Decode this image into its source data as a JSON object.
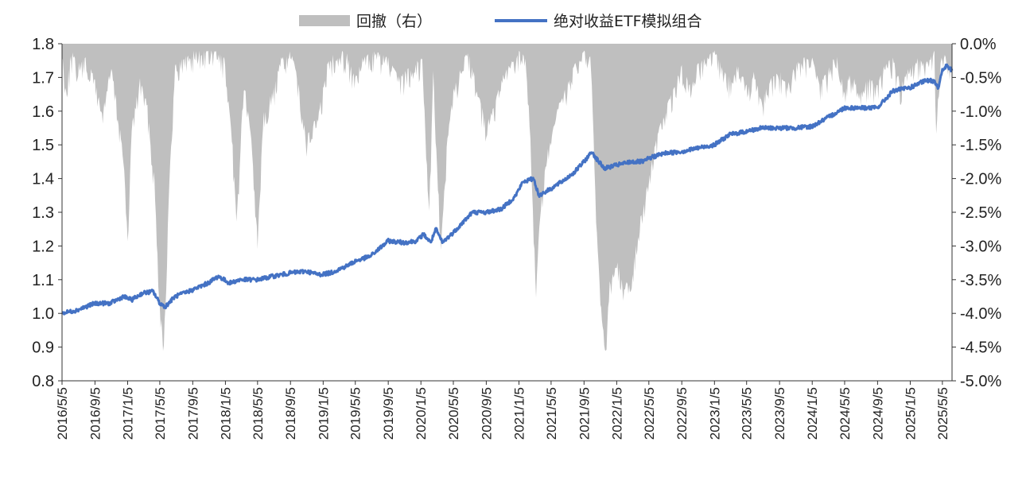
{
  "chart_data": {
    "type": "line",
    "title": "",
    "xlabel": "",
    "ylabel": "",
    "legend": {
      "placement": "top-center",
      "entries": [
        {
          "label": "回撤（右）",
          "kind": "area",
          "color": "#bfbfbf"
        },
        {
          "label": "绝对收益ETF模拟组合",
          "kind": "line",
          "color": "#4472c4"
        }
      ]
    },
    "x_range": [
      "2016-05-05",
      "2025-06-10"
    ],
    "x_ticks": [
      "2016/5/5",
      "2016/9/5",
      "2017/1/5",
      "2017/5/5",
      "2017/9/5",
      "2018/1/5",
      "2018/5/5",
      "2018/9/5",
      "2019/1/5",
      "2019/5/5",
      "2019/9/5",
      "2020/1/5",
      "2020/5/5",
      "2020/9/5",
      "2021/1/5",
      "2021/5/5",
      "2021/9/5",
      "2022/1/5",
      "2022/5/5",
      "2022/9/5",
      "2023/1/5",
      "2023/5/5",
      "2023/9/5",
      "2024/1/5",
      "2024/5/5",
      "2024/9/5",
      "2025/1/5",
      "2025/5/5"
    ],
    "y_left": {
      "min": 0.8,
      "max": 1.8,
      "ticks": [
        "0.8",
        "0.9",
        "1.0",
        "1.1",
        "1.2",
        "1.3",
        "1.4",
        "1.5",
        "1.6",
        "1.7",
        "1.8"
      ]
    },
    "y_right": {
      "min": -5.0,
      "max": 0.0,
      "ticks": [
        "0.0%",
        "-0.5%",
        "-1.0%",
        "-1.5%",
        "-2.0%",
        "-2.5%",
        "-3.0%",
        "-3.5%",
        "-4.0%",
        "-4.5%",
        "-5.0%"
      ]
    },
    "grid": false,
    "series": [
      {
        "name": "绝对收益ETF模拟组合",
        "axis": "left",
        "color": "#4472c4",
        "points": [
          [
            "2016-05-05",
            1.0
          ],
          [
            "2016-07-01",
            1.01
          ],
          [
            "2016-09-05",
            1.03
          ],
          [
            "2016-11-01",
            1.03
          ],
          [
            "2016-12-20",
            1.05
          ],
          [
            "2017-01-20",
            1.04
          ],
          [
            "2017-03-01",
            1.06
          ],
          [
            "2017-04-10",
            1.065
          ],
          [
            "2017-05-05",
            1.03
          ],
          [
            "2017-05-25",
            1.02
          ],
          [
            "2017-07-01",
            1.05
          ],
          [
            "2017-09-05",
            1.07
          ],
          [
            "2017-11-01",
            1.09
          ],
          [
            "2017-12-10",
            1.11
          ],
          [
            "2018-01-20",
            1.09
          ],
          [
            "2018-03-01",
            1.1
          ],
          [
            "2018-05-05",
            1.1
          ],
          [
            "2018-07-01",
            1.11
          ],
          [
            "2018-09-05",
            1.12
          ],
          [
            "2018-11-01",
            1.125
          ],
          [
            "2018-12-20",
            1.115
          ],
          [
            "2019-02-01",
            1.12
          ],
          [
            "2019-04-01",
            1.14
          ],
          [
            "2019-05-05",
            1.155
          ],
          [
            "2019-07-01",
            1.17
          ],
          [
            "2019-09-05",
            1.215
          ],
          [
            "2019-11-01",
            1.21
          ],
          [
            "2019-12-20",
            1.215
          ],
          [
            "2020-01-15",
            1.235
          ],
          [
            "2020-02-10",
            1.21
          ],
          [
            "2020-03-01",
            1.25
          ],
          [
            "2020-03-25",
            1.21
          ],
          [
            "2020-05-05",
            1.24
          ],
          [
            "2020-07-15",
            1.3
          ],
          [
            "2020-09-05",
            1.3
          ],
          [
            "2020-11-01",
            1.31
          ],
          [
            "2020-12-20",
            1.345
          ],
          [
            "2021-01-20",
            1.39
          ],
          [
            "2021-03-01",
            1.4
          ],
          [
            "2021-03-20",
            1.35
          ],
          [
            "2021-05-05",
            1.37
          ],
          [
            "2021-07-01",
            1.4
          ],
          [
            "2021-08-01",
            1.42
          ],
          [
            "2021-09-05",
            1.45
          ],
          [
            "2021-10-05",
            1.48
          ],
          [
            "2021-10-20",
            1.46
          ],
          [
            "2021-11-20",
            1.43
          ],
          [
            "2022-01-05",
            1.44
          ],
          [
            "2022-03-01",
            1.45
          ],
          [
            "2022-04-15",
            1.45
          ],
          [
            "2022-05-05",
            1.46
          ],
          [
            "2022-07-01",
            1.475
          ],
          [
            "2022-09-05",
            1.48
          ],
          [
            "2022-11-01",
            1.49
          ],
          [
            "2023-01-05",
            1.5
          ],
          [
            "2023-03-01",
            1.53
          ],
          [
            "2023-05-05",
            1.54
          ],
          [
            "2023-07-01",
            1.55
          ],
          [
            "2023-09-05",
            1.55
          ],
          [
            "2023-11-01",
            1.55
          ],
          [
            "2024-01-05",
            1.555
          ],
          [
            "2024-03-01",
            1.58
          ],
          [
            "2024-05-05",
            1.61
          ],
          [
            "2024-07-01",
            1.61
          ],
          [
            "2024-09-05",
            1.61
          ],
          [
            "2024-11-01",
            1.66
          ],
          [
            "2025-01-05",
            1.67
          ],
          [
            "2025-03-01",
            1.69
          ],
          [
            "2025-04-05",
            1.69
          ],
          [
            "2025-04-20",
            1.67
          ],
          [
            "2025-05-05",
            1.72
          ],
          [
            "2025-05-20",
            1.735
          ],
          [
            "2025-06-10",
            1.72
          ]
        ]
      },
      {
        "name": "回撤（右）",
        "axis": "right",
        "kind": "area",
        "color": "#bfbfbf",
        "points": [
          [
            "2016-05-05",
            -0.1
          ],
          [
            "2016-05-20",
            -0.6
          ],
          [
            "2016-06-10",
            -0.1
          ],
          [
            "2016-07-01",
            -0.3
          ],
          [
            "2016-08-01",
            -0.2
          ],
          [
            "2016-09-05",
            -0.5
          ],
          [
            "2016-10-01",
            -1.0
          ],
          [
            "2016-11-05",
            -0.3
          ],
          [
            "2016-12-20",
            -1.6
          ],
          [
            "2017-01-05",
            -2.9
          ],
          [
            "2017-01-20",
            -1.2
          ],
          [
            "2017-02-20",
            -0.5
          ],
          [
            "2017-03-20",
            -0.9
          ],
          [
            "2017-04-15",
            -2.0
          ],
          [
            "2017-05-05",
            -3.8
          ],
          [
            "2017-05-20",
            -4.4
          ],
          [
            "2017-06-10",
            -2.0
          ],
          [
            "2017-07-01",
            -0.3
          ],
          [
            "2017-08-01",
            -0.2
          ],
          [
            "2017-09-05",
            -0.1
          ],
          [
            "2017-10-15",
            -0.1
          ],
          [
            "2017-12-01",
            -0.1
          ],
          [
            "2018-01-01",
            -0.2
          ],
          [
            "2018-02-01",
            -1.5
          ],
          [
            "2018-02-15",
            -2.6
          ],
          [
            "2018-03-15",
            -0.5
          ],
          [
            "2018-04-15",
            -1.5
          ],
          [
            "2018-05-05",
            -2.9
          ],
          [
            "2018-05-25",
            -1.0
          ],
          [
            "2018-07-01",
            -0.7
          ],
          [
            "2018-08-01",
            -0.2
          ],
          [
            "2018-09-05",
            -0.1
          ],
          [
            "2018-10-05",
            -0.5
          ],
          [
            "2018-11-01",
            -1.4
          ],
          [
            "2018-12-20",
            -1.0
          ],
          [
            "2019-01-20",
            -0.3
          ],
          [
            "2019-02-15",
            -0.1
          ],
          [
            "2019-04-01",
            -0.1
          ],
          [
            "2019-05-05",
            -0.5
          ],
          [
            "2019-06-01",
            -0.2
          ],
          [
            "2019-07-15",
            -0.1
          ],
          [
            "2019-09-05",
            -0.2
          ],
          [
            "2019-10-15",
            -0.5
          ],
          [
            "2019-12-01",
            -0.3
          ],
          [
            "2020-01-10",
            -0.2
          ],
          [
            "2020-02-05",
            -2.4
          ],
          [
            "2020-02-20",
            -0.4
          ],
          [
            "2020-03-20",
            -3.0
          ],
          [
            "2020-04-10",
            -1.5
          ],
          [
            "2020-05-05",
            -0.7
          ],
          [
            "2020-06-01",
            -0.3
          ],
          [
            "2020-07-01",
            -0.1
          ],
          [
            "2020-08-01",
            -0.6
          ],
          [
            "2020-09-05",
            -1.2
          ],
          [
            "2020-10-05",
            -0.9
          ],
          [
            "2020-11-01",
            -0.5
          ],
          [
            "2020-12-01",
            -0.3
          ],
          [
            "2021-01-05",
            -0.1
          ],
          [
            "2021-02-01",
            -0.2
          ],
          [
            "2021-02-20",
            -1.6
          ],
          [
            "2021-03-10",
            -3.7
          ],
          [
            "2021-03-25",
            -2.4
          ],
          [
            "2021-04-20",
            -1.6
          ],
          [
            "2021-05-05",
            -1.4
          ],
          [
            "2021-06-01",
            -0.9
          ],
          [
            "2021-07-01",
            -0.6
          ],
          [
            "2021-08-01",
            -0.3
          ],
          [
            "2021-09-05",
            -0.1
          ],
          [
            "2021-10-01",
            -0.2
          ],
          [
            "2021-10-20",
            -2.5
          ],
          [
            "2021-11-05",
            -3.8
          ],
          [
            "2021-11-25",
            -4.5
          ],
          [
            "2021-12-10",
            -3.5
          ],
          [
            "2022-01-05",
            -3.2
          ],
          [
            "2022-02-05",
            -3.6
          ],
          [
            "2022-03-05",
            -3.3
          ],
          [
            "2022-04-01",
            -2.6
          ],
          [
            "2022-05-05",
            -2.0
          ],
          [
            "2022-06-01",
            -1.4
          ],
          [
            "2022-07-01",
            -1.0
          ],
          [
            "2022-08-01",
            -0.7
          ],
          [
            "2022-09-05",
            -0.3
          ],
          [
            "2022-10-05",
            -0.6
          ],
          [
            "2022-11-01",
            -0.3
          ],
          [
            "2022-12-01",
            -0.2
          ],
          [
            "2023-01-05",
            -0.1
          ],
          [
            "2023-02-01",
            -0.3
          ],
          [
            "2023-03-01",
            -0.5
          ],
          [
            "2023-04-01",
            -0.3
          ],
          [
            "2023-05-05",
            -0.6
          ],
          [
            "2023-06-01",
            -0.4
          ],
          [
            "2023-07-01",
            -0.8
          ],
          [
            "2023-08-01",
            -0.5
          ],
          [
            "2023-09-05",
            -0.4
          ],
          [
            "2023-10-05",
            -0.6
          ],
          [
            "2023-11-01",
            -0.3
          ],
          [
            "2023-12-01",
            -0.2
          ],
          [
            "2024-01-05",
            -0.2
          ],
          [
            "2024-02-01",
            -0.6
          ],
          [
            "2024-03-01",
            -0.4
          ],
          [
            "2024-04-01",
            -0.1
          ],
          [
            "2024-05-05",
            -0.6
          ],
          [
            "2024-06-01",
            -0.4
          ],
          [
            "2024-07-01",
            -0.7
          ],
          [
            "2024-08-01",
            -0.5
          ],
          [
            "2024-09-05",
            -0.6
          ],
          [
            "2024-10-01",
            -0.3
          ],
          [
            "2024-11-01",
            -0.2
          ],
          [
            "2024-12-01",
            -0.6
          ],
          [
            "2025-01-05",
            -0.3
          ],
          [
            "2025-02-01",
            -0.2
          ],
          [
            "2025-03-01",
            -0.3
          ],
          [
            "2025-04-05",
            -0.1
          ],
          [
            "2025-04-12",
            -1.3
          ],
          [
            "2025-04-25",
            -0.3
          ],
          [
            "2025-05-05",
            -0.1
          ],
          [
            "2025-05-20",
            -0.2
          ],
          [
            "2025-06-10",
            -0.4
          ]
        ]
      }
    ]
  }
}
